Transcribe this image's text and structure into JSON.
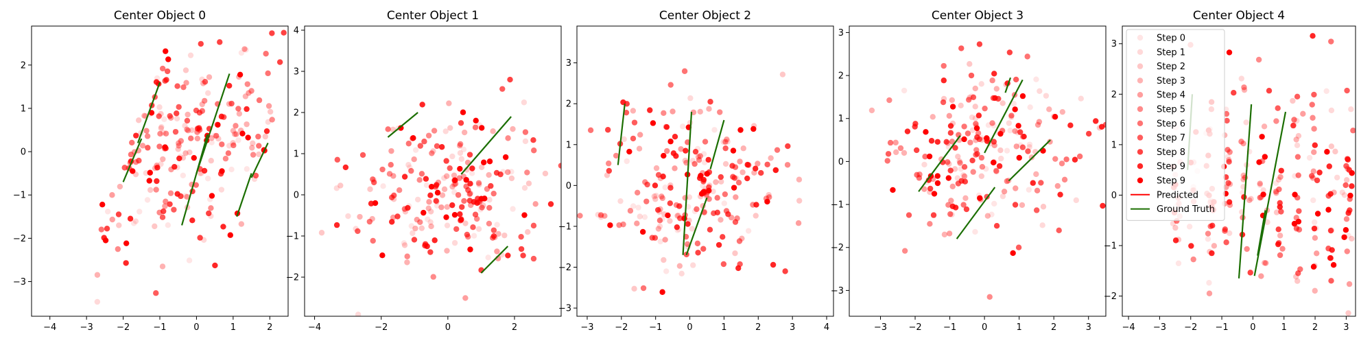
{
  "figure": {
    "legend": {
      "placement": "upper-left of last panel",
      "entries": [
        "Step 0",
        "Step 1",
        "Step 2",
        "Step 3",
        "Step 4",
        "Step 5",
        "Step 6",
        "Step 7",
        "Step 8",
        "Step 9",
        "Step 9",
        "Predicted",
        "Ground Truth"
      ]
    },
    "colors": {
      "points": "#ff0000",
      "predicted": "#ff0000",
      "ground_truth": "#1a6e00"
    },
    "step_alphas": [
      0.1,
      0.15,
      0.22,
      0.3,
      0.38,
      0.46,
      0.55,
      0.64,
      0.74,
      0.85,
      1.0
    ]
  },
  "chart_data": [
    {
      "type": "scatter",
      "title": "Center Object 0",
      "xlim": [
        -4.5,
        2.5
      ],
      "ylim": [
        -3.8,
        2.9
      ],
      "xticks": [
        -4,
        -3,
        -2,
        -1,
        0,
        1,
        2
      ],
      "yticks": [
        -3,
        -2,
        -1,
        0,
        1,
        2
      ],
      "grid": false,
      "pattern": "skewed",
      "center": [
        0,
        0
      ],
      "spread": [
        1.0,
        1.2
      ],
      "ground_truth": [
        [
          [
            -1.6,
            0.2
          ],
          [
            -1.0,
            1.6
          ]
        ],
        [
          [
            -2.0,
            -0.7
          ],
          [
            -1.5,
            0.3
          ]
        ],
        [
          [
            -0.4,
            -1.7
          ],
          [
            0.3,
            0.4
          ]
        ],
        [
          [
            0.0,
            -0.5
          ],
          [
            0.9,
            1.8
          ]
        ],
        [
          [
            1.1,
            -1.5
          ],
          [
            1.5,
            -0.5
          ]
        ],
        [
          [
            1.5,
            -0.6
          ],
          [
            1.95,
            0.2
          ]
        ]
      ]
    },
    {
      "type": "scatter",
      "title": "Center Object 1",
      "xlim": [
        -4.3,
        3.4
      ],
      "ylim": [
        -2.95,
        4.1
      ],
      "xticks": [
        -4,
        -2,
        0,
        2
      ],
      "yticks": [
        -2,
        -1,
        0,
        1,
        2,
        3,
        4
      ],
      "grid": false,
      "pattern": "blob",
      "center": [
        0,
        0.1
      ],
      "spread": [
        1.5,
        1.0
      ],
      "ground_truth": [
        [
          [
            -1.8,
            1.4
          ],
          [
            -0.9,
            2.0
          ]
        ],
        [
          [
            0.4,
            0.5
          ],
          [
            1.9,
            1.9
          ]
        ],
        [
          [
            1.0,
            -1.9
          ],
          [
            1.8,
            -1.25
          ]
        ]
      ]
    },
    {
      "type": "scatter",
      "title": "Center Object 2",
      "xlim": [
        -3.3,
        4.2
      ],
      "ylim": [
        -3.2,
        3.9
      ],
      "xticks": [
        -3,
        -2,
        -1,
        0,
        1,
        2,
        3,
        4
      ],
      "yticks": [
        -3,
        -2,
        -1,
        0,
        1,
        2,
        3
      ],
      "grid": false,
      "pattern": "blob",
      "center": [
        0.1,
        -0.1
      ],
      "spread": [
        1.4,
        1.1
      ],
      "ground_truth": [
        [
          [
            -2.1,
            0.5
          ],
          [
            -1.9,
            2.0
          ]
        ],
        [
          [
            -0.2,
            -1.7
          ],
          [
            0.05,
            1.8
          ]
        ],
        [
          [
            -0.1,
            -1.7
          ],
          [
            0.5,
            -0.3
          ]
        ],
        [
          [
            0.6,
            0.4
          ],
          [
            1.0,
            1.6
          ]
        ]
      ]
    },
    {
      "type": "scatter",
      "title": "Center Object 3",
      "xlim": [
        -3.9,
        3.5
      ],
      "ylim": [
        -3.6,
        3.15
      ],
      "xticks": [
        -3,
        -2,
        -1,
        0,
        1,
        2,
        3
      ],
      "yticks": [
        -3,
        -2,
        -1,
        0,
        1,
        2,
        3
      ],
      "grid": false,
      "pattern": "blob",
      "center": [
        0,
        0.2
      ],
      "spread": [
        1.4,
        1.0
      ],
      "ground_truth": [
        [
          [
            -1.9,
            -0.7
          ],
          [
            -0.7,
            0.6
          ]
        ],
        [
          [
            -0.8,
            -1.8
          ],
          [
            0.3,
            -0.6
          ]
        ],
        [
          [
            0.0,
            0.2
          ],
          [
            1.1,
            1.9
          ]
        ],
        [
          [
            0.6,
            1.6
          ],
          [
            0.75,
            1.95
          ]
        ],
        [
          [
            0.7,
            -0.45
          ],
          [
            1.9,
            0.5
          ]
        ]
      ]
    },
    {
      "type": "scatter",
      "title": "Center Object 4",
      "xlim": [
        -4.2,
        3.3
      ],
      "ylim": [
        -2.4,
        3.35
      ],
      "xticks": [
        -4,
        -3,
        -2,
        -1,
        0,
        1,
        2,
        3
      ],
      "yticks": [
        -2,
        -1,
        0,
        1,
        2,
        3
      ],
      "grid": false,
      "pattern": "vertical",
      "center": [
        0.3,
        0.2
      ],
      "spread": [
        1.3,
        1.0
      ],
      "ground_truth": [
        [
          [
            -2.1,
            0.5
          ],
          [
            -1.95,
            2.0
          ]
        ],
        [
          [
            -0.45,
            -1.65
          ],
          [
            -0.05,
            1.8
          ]
        ],
        [
          [
            0.05,
            -1.6
          ],
          [
            1.05,
            1.65
          ]
        ],
        [
          [
            0.15,
            -1.2
          ],
          [
            0.4,
            -0.3
          ]
        ]
      ]
    }
  ]
}
